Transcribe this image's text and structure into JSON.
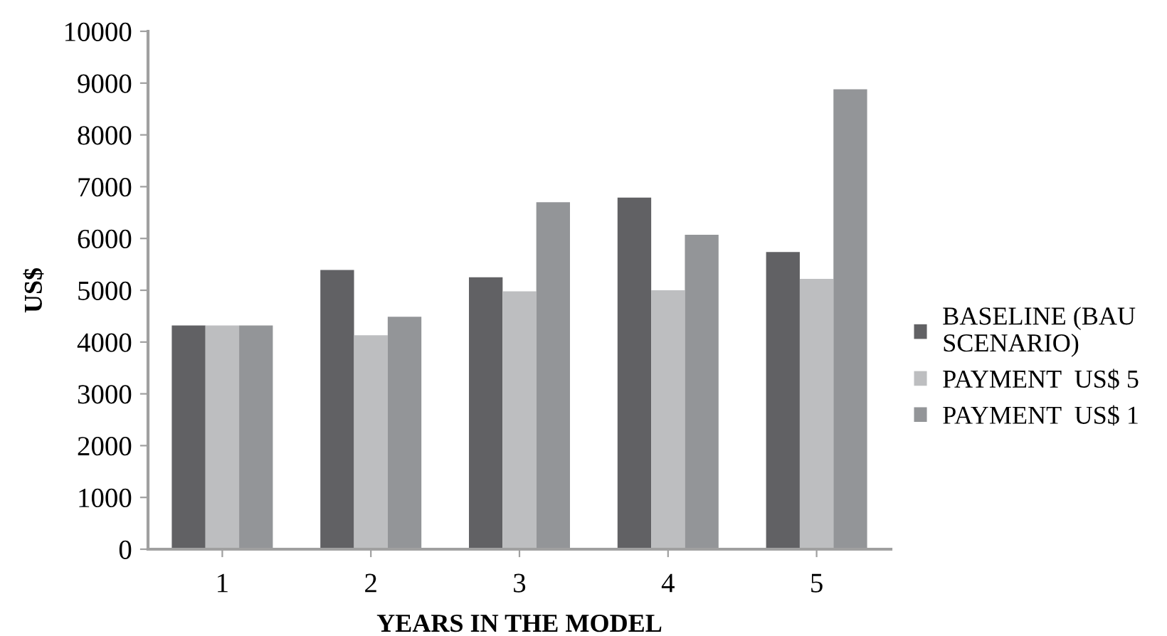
{
  "chart_data": {
    "type": "bar",
    "xlabel": "YEARS IN THE MODEL",
    "ylabel": "US$",
    "categories": [
      "1",
      "2",
      "3",
      "4",
      "5"
    ],
    "series": [
      {
        "name": "BASELINE (BAU\nSCENARIO)",
        "color": "#616164",
        "values": [
          4320,
          5390,
          5250,
          6790,
          5740
        ]
      },
      {
        "name": "PAYMENT  US$ 5",
        "color": "#bdbec0",
        "values": [
          4320,
          4130,
          4980,
          5000,
          5220
        ]
      },
      {
        "name": "PAYMENT  US$ 1",
        "color": "#939598",
        "values": [
          4320,
          4490,
          6700,
          6070,
          8880
        ]
      }
    ],
    "ylim": [
      0,
      10000
    ],
    "yticks": [
      0,
      1000,
      2000,
      3000,
      4000,
      5000,
      6000,
      7000,
      8000,
      9000,
      10000
    ],
    "grid": false,
    "legend": "right"
  }
}
